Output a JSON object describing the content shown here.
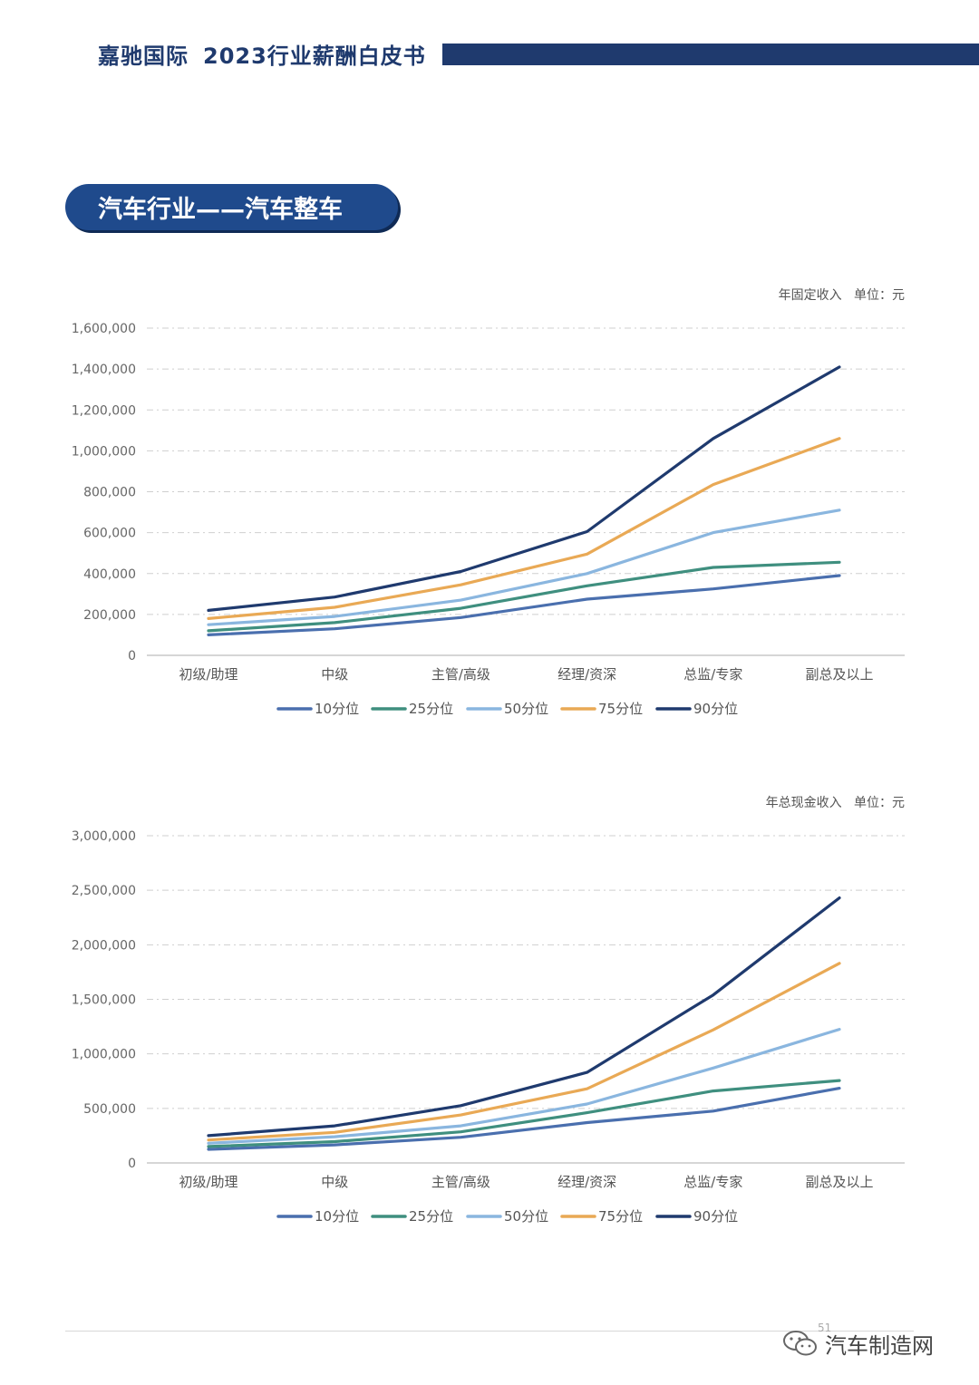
{
  "header": {
    "brand": "嘉驰国际",
    "title": "2023行业薪酬白皮书",
    "bar_color": "#1f3a6e"
  },
  "section": {
    "title": "汽车行业——汽车整车"
  },
  "colors": {
    "p10": "#4a6fae",
    "p25": "#3f8f7f",
    "p50": "#8ab6df",
    "p75": "#e9a955",
    "p90": "#1f3a6e"
  },
  "chart_data": [
    {
      "type": "line",
      "subtitle": "年固定收入",
      "unit": "单位：元",
      "categories": [
        "初级/助理",
        "中级",
        "主管/高级",
        "经理/资深",
        "总监/专家",
        "副总及以上"
      ],
      "yticks": [
        "0",
        "200,000",
        "400,000",
        "600,000",
        "800,000",
        "1,000,000",
        "1,200,000",
        "1,400,000",
        "1,600,000"
      ],
      "ylim": [
        0,
        1600000
      ],
      "grid": true,
      "legend_position": "bottom",
      "series": [
        {
          "name": "10分位",
          "values": [
            100000,
            130000,
            185000,
            275000,
            325000,
            390000
          ]
        },
        {
          "name": "25分位",
          "values": [
            120000,
            160000,
            230000,
            340000,
            430000,
            455000
          ]
        },
        {
          "name": "50分位",
          "values": [
            150000,
            190000,
            270000,
            400000,
            600000,
            710000
          ]
        },
        {
          "name": "75分位",
          "values": [
            180000,
            235000,
            345000,
            495000,
            835000,
            1060000
          ]
        },
        {
          "name": "90分位",
          "values": [
            220000,
            285000,
            410000,
            605000,
            1060000,
            1410000
          ]
        }
      ]
    },
    {
      "type": "line",
      "subtitle": "年总现金收入",
      "unit": "单位：元",
      "categories": [
        "初级/助理",
        "中级",
        "主管/高级",
        "经理/资深",
        "总监/专家",
        "副总及以上"
      ],
      "yticks": [
        "0",
        "500,000",
        "1,000,000",
        "1,500,000",
        "2,000,000",
        "2,500,000",
        "3,000,000"
      ],
      "ylim": [
        0,
        3000000
      ],
      "grid": true,
      "legend_position": "bottom",
      "series": [
        {
          "name": "10分位",
          "values": [
            125000,
            165000,
            235000,
            370000,
            475000,
            685000
          ]
        },
        {
          "name": "25分位",
          "values": [
            150000,
            195000,
            285000,
            460000,
            660000,
            755000
          ]
        },
        {
          "name": "50分位",
          "values": [
            180000,
            240000,
            340000,
            540000,
            870000,
            1225000
          ]
        },
        {
          "name": "75分位",
          "values": [
            210000,
            280000,
            440000,
            680000,
            1220000,
            1830000
          ]
        },
        {
          "name": "90分位",
          "values": [
            250000,
            340000,
            525000,
            830000,
            1540000,
            2430000
          ]
        }
      ]
    }
  ],
  "footer": {
    "page_number": "51",
    "watermark": "汽车制造网",
    "watermark_icon": "wechat-icon"
  }
}
